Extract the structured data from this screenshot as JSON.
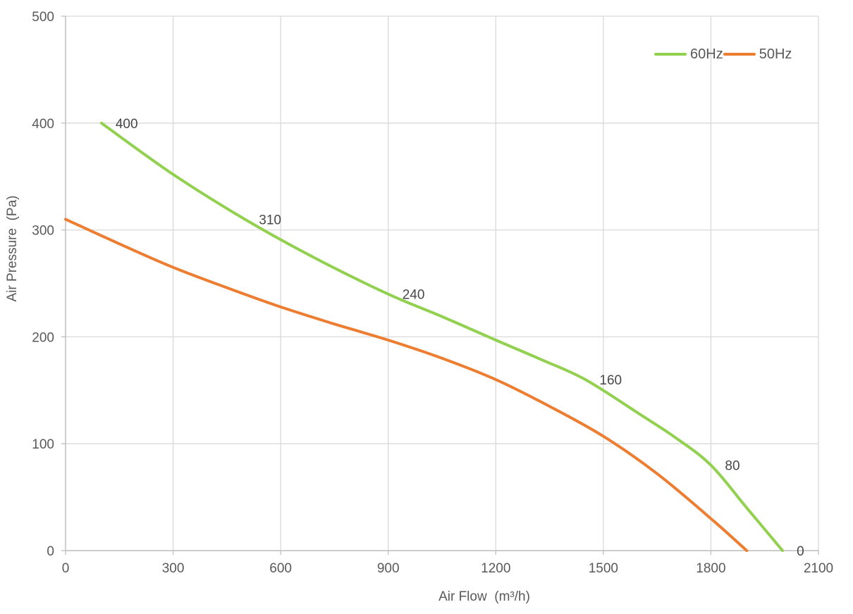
{
  "chart_data": {
    "type": "line",
    "title": "",
    "xlabel": "Air Flow  (m³/h)",
    "ylabel": "Air Pressure  (Pa)",
    "xlim": [
      0,
      2100
    ],
    "ylim": [
      0,
      500
    ],
    "x_ticks": [
      0,
      300,
      600,
      900,
      1200,
      1500,
      1800,
      2100
    ],
    "y_ticks": [
      0,
      100,
      200,
      300,
      400,
      500
    ],
    "grid": true,
    "legend_position": "top-right-inside",
    "series": [
      {
        "name": "60Hz",
        "color": "#92D050",
        "points": [
          [
            100,
            400
          ],
          [
            300,
            352
          ],
          [
            500,
            310
          ],
          [
            700,
            273
          ],
          [
            900,
            240
          ],
          [
            1050,
            219
          ],
          [
            1200,
            197
          ],
          [
            1325,
            179
          ],
          [
            1450,
            160
          ],
          [
            1600,
            128
          ],
          [
            1700,
            106
          ],
          [
            1800,
            80
          ],
          [
            1900,
            40
          ],
          [
            2000,
            0
          ]
        ],
        "point_labels": [
          {
            "text": "400",
            "x": 100,
            "y": 400
          },
          {
            "text": "310",
            "x": 500,
            "y": 310
          },
          {
            "text": "240",
            "x": 900,
            "y": 240
          },
          {
            "text": "160",
            "x": 1450,
            "y": 160
          },
          {
            "text": "80",
            "x": 1800,
            "y": 80
          },
          {
            "text": "0",
            "x": 2000,
            "y": 0
          }
        ]
      },
      {
        "name": "50Hz",
        "color": "#ED7D31",
        "points": [
          [
            0,
            310
          ],
          [
            150,
            287
          ],
          [
            300,
            265
          ],
          [
            450,
            246
          ],
          [
            600,
            228
          ],
          [
            750,
            212
          ],
          [
            900,
            197
          ],
          [
            1050,
            180
          ],
          [
            1200,
            160
          ],
          [
            1350,
            135
          ],
          [
            1500,
            107
          ],
          [
            1650,
            72
          ],
          [
            1800,
            30
          ],
          [
            1900,
            0
          ]
        ],
        "point_labels": []
      }
    ]
  },
  "colors": {
    "grid": "#D9D9D9",
    "axis": "#BFBFBF",
    "tick_text": "#595959",
    "data_label_text": "#474747",
    "background": "#FFFFFF"
  }
}
